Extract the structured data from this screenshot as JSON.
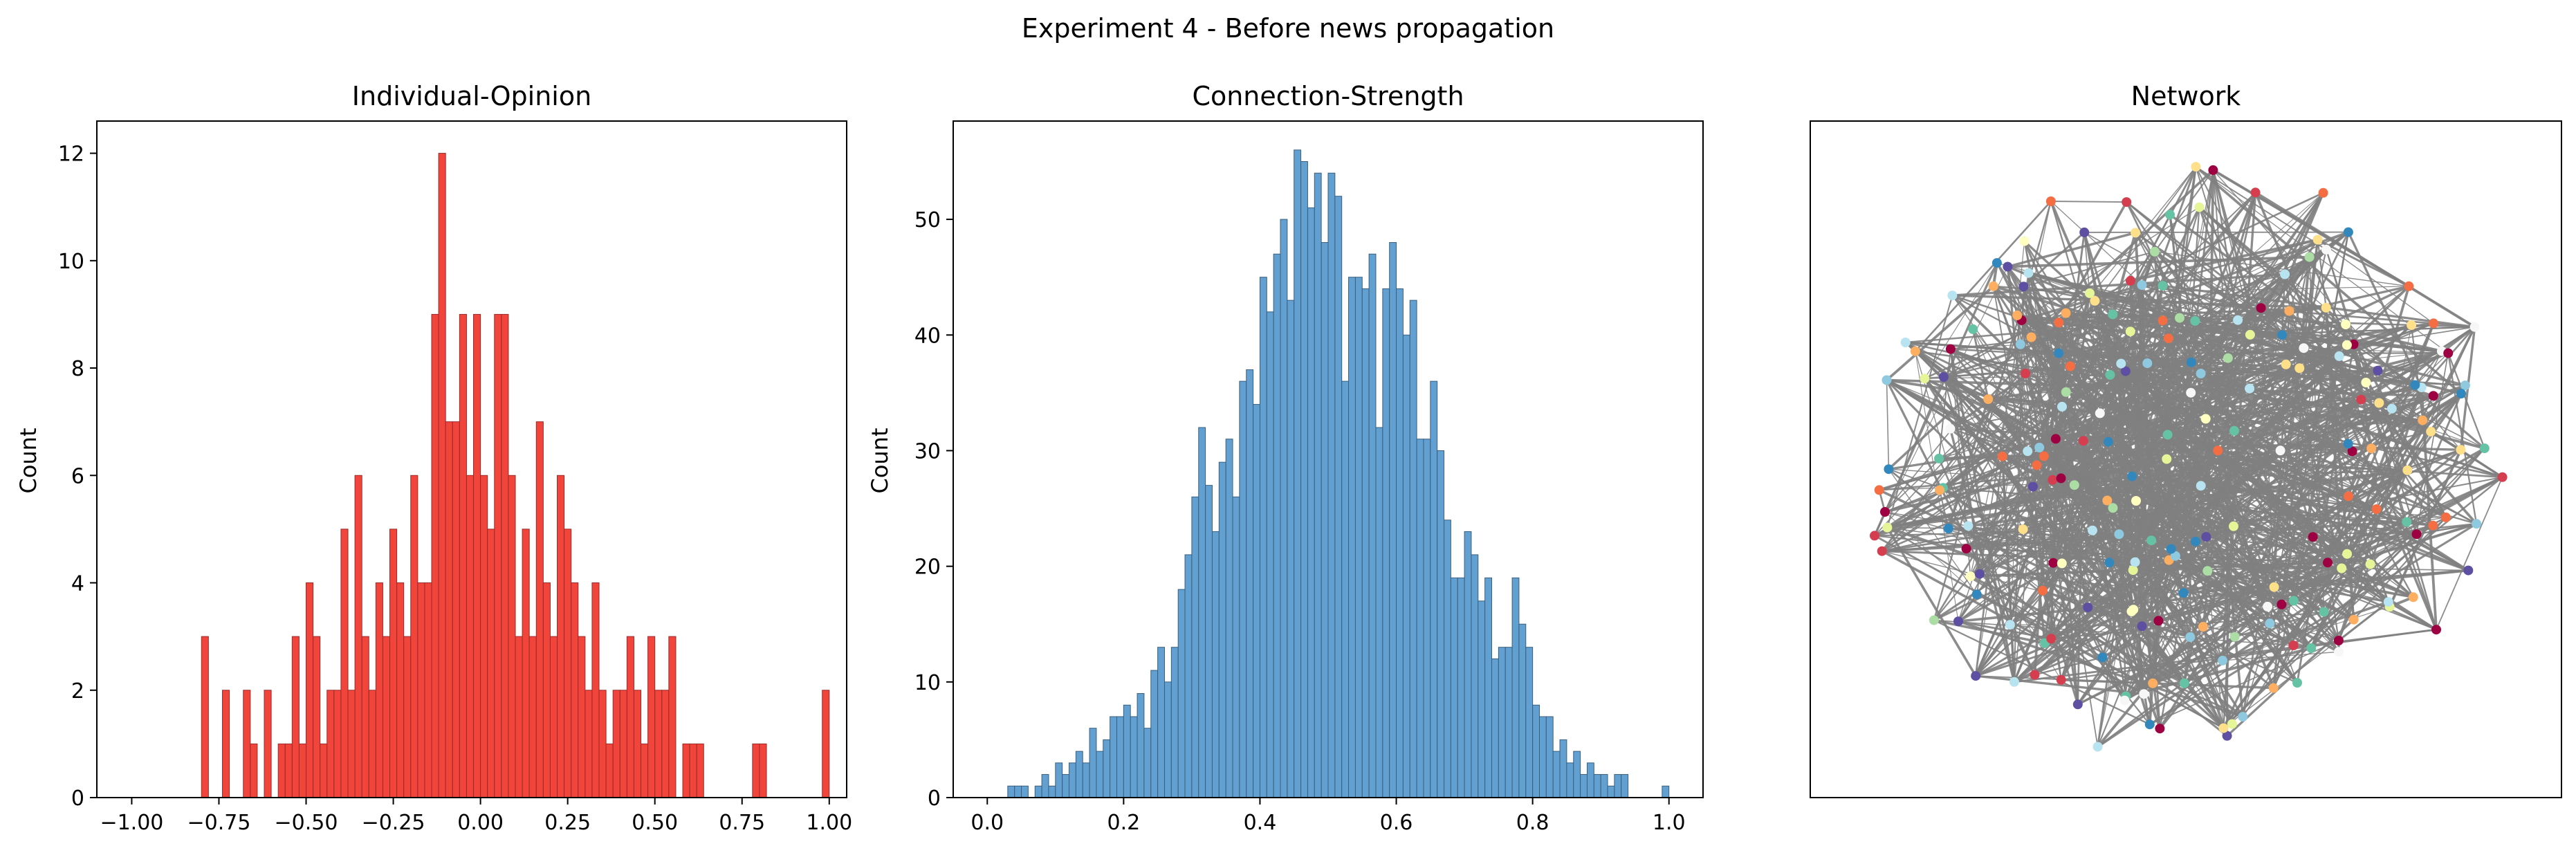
{
  "suptitle": "Experiment 4 - Before news propagation",
  "chart_data": [
    {
      "type": "bar",
      "title": "Individual-Opinion",
      "xlabel": "",
      "ylabel": "Count",
      "xlim": [
        -1.1,
        1.05
      ],
      "ylim": [
        0,
        12.6
      ],
      "bin_width": 0.02,
      "color": "#f03b32",
      "edge_color": "#9a2a2a",
      "x_ticks": [
        -1.0,
        -0.75,
        -0.5,
        -0.25,
        0.0,
        0.25,
        0.5,
        0.75,
        1.0
      ],
      "x_tick_labels": [
        "−1.00",
        "−0.75",
        "−0.50",
        "−0.25",
        "0.00",
        "0.25",
        "0.50",
        "0.75",
        "1.00"
      ],
      "y_ticks": [
        0,
        2,
        4,
        6,
        8,
        10,
        12
      ],
      "y_tick_labels": [
        "0",
        "2",
        "4",
        "6",
        "8",
        "10",
        "12"
      ],
      "bins": [
        {
          "x": -0.79,
          "count": 3
        },
        {
          "x": -0.73,
          "count": 2
        },
        {
          "x": -0.67,
          "count": 2
        },
        {
          "x": -0.65,
          "count": 1
        },
        {
          "x": -0.61,
          "count": 2
        },
        {
          "x": -0.57,
          "count": 1
        },
        {
          "x": -0.55,
          "count": 1
        },
        {
          "x": -0.53,
          "count": 3
        },
        {
          "x": -0.51,
          "count": 1
        },
        {
          "x": -0.49,
          "count": 4
        },
        {
          "x": -0.47,
          "count": 3
        },
        {
          "x": -0.45,
          "count": 1
        },
        {
          "x": -0.43,
          "count": 2
        },
        {
          "x": -0.41,
          "count": 2
        },
        {
          "x": -0.39,
          "count": 5
        },
        {
          "x": -0.37,
          "count": 2
        },
        {
          "x": -0.35,
          "count": 6
        },
        {
          "x": -0.33,
          "count": 3
        },
        {
          "x": -0.31,
          "count": 2
        },
        {
          "x": -0.29,
          "count": 4
        },
        {
          "x": -0.27,
          "count": 3
        },
        {
          "x": -0.25,
          "count": 5
        },
        {
          "x": -0.23,
          "count": 4
        },
        {
          "x": -0.21,
          "count": 3
        },
        {
          "x": -0.19,
          "count": 6
        },
        {
          "x": -0.17,
          "count": 4
        },
        {
          "x": -0.15,
          "count": 4
        },
        {
          "x": -0.13,
          "count": 9
        },
        {
          "x": -0.11,
          "count": 12
        },
        {
          "x": -0.09,
          "count": 7
        },
        {
          "x": -0.07,
          "count": 7
        },
        {
          "x": -0.05,
          "count": 9
        },
        {
          "x": -0.03,
          "count": 6
        },
        {
          "x": -0.01,
          "count": 9
        },
        {
          "x": 0.01,
          "count": 6
        },
        {
          "x": 0.03,
          "count": 5
        },
        {
          "x": 0.05,
          "count": 9
        },
        {
          "x": 0.07,
          "count": 9
        },
        {
          "x": 0.09,
          "count": 6
        },
        {
          "x": 0.11,
          "count": 3
        },
        {
          "x": 0.13,
          "count": 5
        },
        {
          "x": 0.15,
          "count": 3
        },
        {
          "x": 0.17,
          "count": 7
        },
        {
          "x": 0.19,
          "count": 4
        },
        {
          "x": 0.21,
          "count": 3
        },
        {
          "x": 0.23,
          "count": 6
        },
        {
          "x": 0.25,
          "count": 5
        },
        {
          "x": 0.27,
          "count": 4
        },
        {
          "x": 0.29,
          "count": 3
        },
        {
          "x": 0.31,
          "count": 2
        },
        {
          "x": 0.33,
          "count": 4
        },
        {
          "x": 0.35,
          "count": 2
        },
        {
          "x": 0.37,
          "count": 1
        },
        {
          "x": 0.39,
          "count": 2
        },
        {
          "x": 0.41,
          "count": 2
        },
        {
          "x": 0.43,
          "count": 3
        },
        {
          "x": 0.45,
          "count": 2
        },
        {
          "x": 0.47,
          "count": 1
        },
        {
          "x": 0.49,
          "count": 3
        },
        {
          "x": 0.51,
          "count": 2
        },
        {
          "x": 0.53,
          "count": 2
        },
        {
          "x": 0.55,
          "count": 3
        },
        {
          "x": 0.59,
          "count": 1
        },
        {
          "x": 0.61,
          "count": 1
        },
        {
          "x": 0.63,
          "count": 1
        },
        {
          "x": 0.79,
          "count": 1
        },
        {
          "x": 0.81,
          "count": 1
        },
        {
          "x": 0.99,
          "count": 2
        }
      ]
    },
    {
      "type": "bar",
      "title": "Connection-Strength",
      "xlabel": "",
      "ylabel": "Count",
      "xlim": [
        -0.05,
        1.05
      ],
      "ylim": [
        0,
        58.5
      ],
      "bin_width": 0.01,
      "color": "#5a9bd0",
      "edge_color": "#3b5f7c",
      "x_ticks": [
        0.0,
        0.2,
        0.4,
        0.6,
        0.8,
        1.0
      ],
      "x_tick_labels": [
        "0.0",
        "0.2",
        "0.4",
        "0.6",
        "0.8",
        "1.0"
      ],
      "y_ticks": [
        0,
        10,
        20,
        30,
        40,
        50
      ],
      "y_tick_labels": [
        "0",
        "10",
        "20",
        "30",
        "40",
        "50"
      ],
      "bins": [
        {
          "x": 0.035,
          "count": 1
        },
        {
          "x": 0.045,
          "count": 1
        },
        {
          "x": 0.055,
          "count": 1
        },
        {
          "x": 0.075,
          "count": 1
        },
        {
          "x": 0.085,
          "count": 2
        },
        {
          "x": 0.095,
          "count": 1
        },
        {
          "x": 0.105,
          "count": 3
        },
        {
          "x": 0.115,
          "count": 2
        },
        {
          "x": 0.125,
          "count": 3
        },
        {
          "x": 0.135,
          "count": 4
        },
        {
          "x": 0.145,
          "count": 3
        },
        {
          "x": 0.155,
          "count": 6
        },
        {
          "x": 0.165,
          "count": 4
        },
        {
          "x": 0.175,
          "count": 5
        },
        {
          "x": 0.185,
          "count": 7
        },
        {
          "x": 0.195,
          "count": 7
        },
        {
          "x": 0.205,
          "count": 8
        },
        {
          "x": 0.215,
          "count": 7
        },
        {
          "x": 0.225,
          "count": 9
        },
        {
          "x": 0.235,
          "count": 6
        },
        {
          "x": 0.245,
          "count": 11
        },
        {
          "x": 0.255,
          "count": 13
        },
        {
          "x": 0.265,
          "count": 10
        },
        {
          "x": 0.275,
          "count": 13
        },
        {
          "x": 0.285,
          "count": 18
        },
        {
          "x": 0.295,
          "count": 21
        },
        {
          "x": 0.305,
          "count": 26
        },
        {
          "x": 0.315,
          "count": 32
        },
        {
          "x": 0.325,
          "count": 27
        },
        {
          "x": 0.335,
          "count": 23
        },
        {
          "x": 0.345,
          "count": 29
        },
        {
          "x": 0.355,
          "count": 31
        },
        {
          "x": 0.365,
          "count": 26
        },
        {
          "x": 0.375,
          "count": 36
        },
        {
          "x": 0.385,
          "count": 37
        },
        {
          "x": 0.395,
          "count": 34
        },
        {
          "x": 0.405,
          "count": 45
        },
        {
          "x": 0.415,
          "count": 42
        },
        {
          "x": 0.425,
          "count": 47
        },
        {
          "x": 0.435,
          "count": 50
        },
        {
          "x": 0.445,
          "count": 43
        },
        {
          "x": 0.455,
          "count": 56
        },
        {
          "x": 0.465,
          "count": 55
        },
        {
          "x": 0.475,
          "count": 51
        },
        {
          "x": 0.485,
          "count": 54
        },
        {
          "x": 0.495,
          "count": 48
        },
        {
          "x": 0.505,
          "count": 54
        },
        {
          "x": 0.515,
          "count": 52
        },
        {
          "x": 0.525,
          "count": 36
        },
        {
          "x": 0.535,
          "count": 45
        },
        {
          "x": 0.545,
          "count": 45
        },
        {
          "x": 0.555,
          "count": 44
        },
        {
          "x": 0.565,
          "count": 47
        },
        {
          "x": 0.575,
          "count": 32
        },
        {
          "x": 0.585,
          "count": 44
        },
        {
          "x": 0.595,
          "count": 48
        },
        {
          "x": 0.605,
          "count": 44
        },
        {
          "x": 0.615,
          "count": 40
        },
        {
          "x": 0.625,
          "count": 43
        },
        {
          "x": 0.635,
          "count": 31
        },
        {
          "x": 0.645,
          "count": 31
        },
        {
          "x": 0.655,
          "count": 36
        },
        {
          "x": 0.665,
          "count": 30
        },
        {
          "x": 0.675,
          "count": 24
        },
        {
          "x": 0.685,
          "count": 19
        },
        {
          "x": 0.695,
          "count": 19
        },
        {
          "x": 0.705,
          "count": 23
        },
        {
          "x": 0.715,
          "count": 21
        },
        {
          "x": 0.725,
          "count": 17
        },
        {
          "x": 0.735,
          "count": 19
        },
        {
          "x": 0.745,
          "count": 12
        },
        {
          "x": 0.755,
          "count": 13
        },
        {
          "x": 0.765,
          "count": 13
        },
        {
          "x": 0.775,
          "count": 19
        },
        {
          "x": 0.785,
          "count": 15
        },
        {
          "x": 0.795,
          "count": 13
        },
        {
          "x": 0.805,
          "count": 8
        },
        {
          "x": 0.815,
          "count": 7
        },
        {
          "x": 0.825,
          "count": 7
        },
        {
          "x": 0.835,
          "count": 4
        },
        {
          "x": 0.845,
          "count": 5
        },
        {
          "x": 0.855,
          "count": 3
        },
        {
          "x": 0.865,
          "count": 4
        },
        {
          "x": 0.875,
          "count": 2
        },
        {
          "x": 0.885,
          "count": 3
        },
        {
          "x": 0.895,
          "count": 2
        },
        {
          "x": 0.905,
          "count": 2
        },
        {
          "x": 0.915,
          "count": 1
        },
        {
          "x": 0.925,
          "count": 2
        },
        {
          "x": 0.935,
          "count": 2
        },
        {
          "x": 0.995,
          "count": 1
        }
      ]
    },
    {
      "type": "scatter",
      "title": "Network",
      "xlabel": "",
      "ylabel": "",
      "x_ticks": [],
      "y_ticks": [],
      "xlim": [
        0,
        1
      ],
      "ylim": [
        0,
        1
      ],
      "edge_color": "#7f7f7f",
      "node_count": 220,
      "edge_count": 1100,
      "node_colors": [
        "#9e0142",
        "#d53e4f",
        "#f46d43",
        "#fdae61",
        "#fee08b",
        "#ffffbf",
        "#e6f598",
        "#abdda4",
        "#66c2a5",
        "#3288bd",
        "#5e4fa2",
        "#f7f7f7",
        "#b7e4f0",
        "#8fc9e0"
      ]
    }
  ]
}
